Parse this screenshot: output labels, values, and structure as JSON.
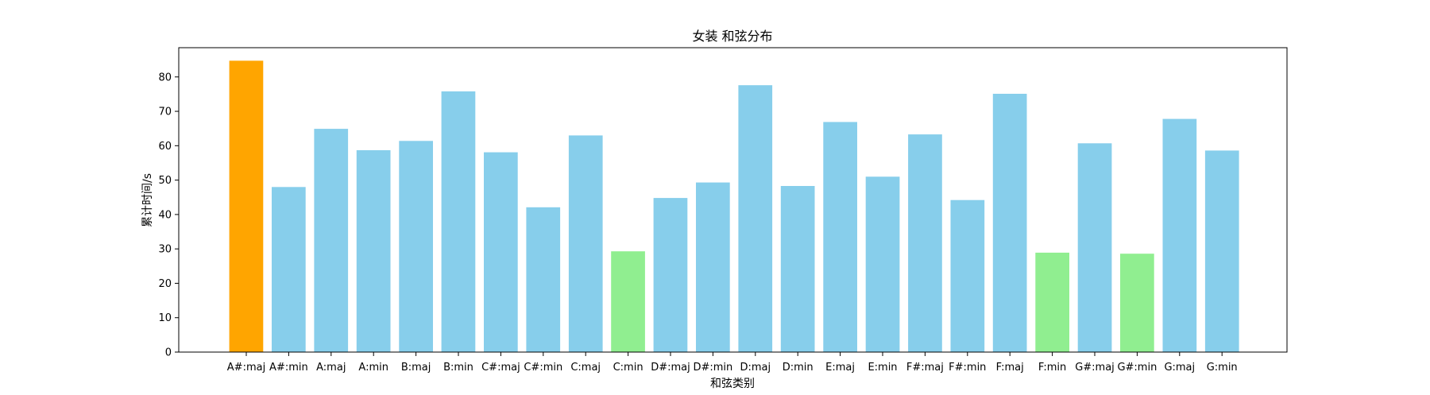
{
  "chart_data": {
    "type": "bar",
    "title": "女装 和弦分布",
    "xlabel": "和弦类别",
    "ylabel": "累计时间/s",
    "ylim": [
      0,
      88.5
    ],
    "yticks": [
      0,
      10,
      20,
      30,
      40,
      50,
      60,
      70,
      80
    ],
    "grid": false,
    "categories": [
      "A#:maj",
      "A#:min",
      "A:maj",
      "A:min",
      "B:maj",
      "B:min",
      "C#:maj",
      "C#:min",
      "C:maj",
      "C:min",
      "D#:maj",
      "D#:min",
      "D:maj",
      "D:min",
      "E:maj",
      "E:min",
      "F#:maj",
      "F#:min",
      "F:maj",
      "F:min",
      "G#:maj",
      "G#:min",
      "G:maj",
      "G:min"
    ],
    "values": [
      84.7,
      48.0,
      64.9,
      58.7,
      61.4,
      75.8,
      58.1,
      42.1,
      63.0,
      29.3,
      44.8,
      49.3,
      77.6,
      48.3,
      66.9,
      51.0,
      63.3,
      44.2,
      75.1,
      28.9,
      60.7,
      28.6,
      67.8,
      58.6
    ],
    "bar_colors": [
      "#ffa500",
      "#87ceeb",
      "#87ceeb",
      "#87ceeb",
      "#87ceeb",
      "#87ceeb",
      "#87ceeb",
      "#87ceeb",
      "#87ceeb",
      "#90ee90",
      "#87ceeb",
      "#87ceeb",
      "#87ceeb",
      "#87ceeb",
      "#87ceeb",
      "#87ceeb",
      "#87ceeb",
      "#87ceeb",
      "#87ceeb",
      "#90ee90",
      "#87ceeb",
      "#90ee90",
      "#87ceeb",
      "#87ceeb"
    ]
  }
}
